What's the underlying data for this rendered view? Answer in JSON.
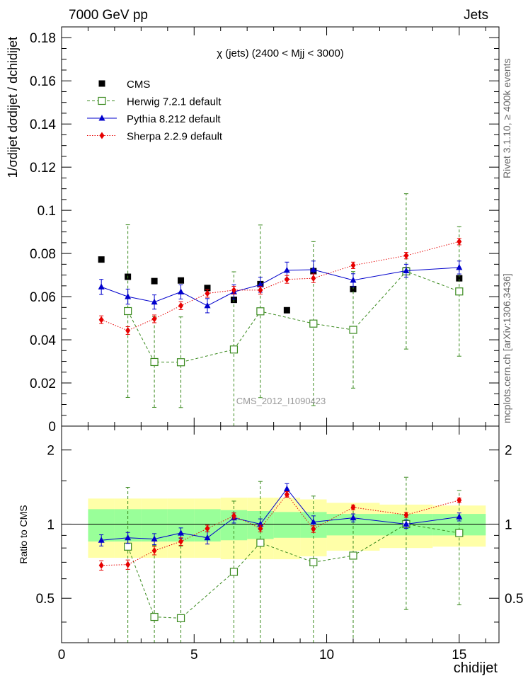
{
  "header": {
    "left": "7000 GeV pp",
    "right": "Jets"
  },
  "side_labels": {
    "rivet": "Rivet 3.1.10, ≥ 400k events",
    "mcplots": "mcplots.cern.ch [arXiv:1306.3436]"
  },
  "chart_data": {
    "type": "line",
    "title": "χ (jets) (2400 < Mjj < 3000)",
    "watermark": "CMS_2012_I1090423",
    "ylabel": "1/σdijet dσdijet / dchidijet",
    "xlabel": "chidijet",
    "ratio_ylabel": "Ratio to CMS",
    "xlim": [
      0,
      16.5
    ],
    "ylim": [
      0,
      0.185
    ],
    "ratio_ylim": [
      0.33,
      2.5
    ],
    "ratio_log": true,
    "x_ticks": [
      0,
      5,
      10,
      15
    ],
    "y_ticks": [
      0,
      0.02,
      0.04,
      0.06,
      0.08,
      0.1,
      0.12,
      0.14,
      0.16,
      0.18
    ],
    "y_tick_labels": [
      "0",
      "0.02",
      "0.04",
      "0.06",
      "0.08",
      "0.1",
      "0.12",
      "0.14",
      "0.16",
      "0.18"
    ],
    "ratio_ticks": [
      0.5,
      1,
      2
    ],
    "ratio_tick_labels": [
      "0.5",
      "1",
      "2"
    ],
    "legend_position": "top-left",
    "bins": [
      [
        1,
        2
      ],
      [
        2,
        3
      ],
      [
        3,
        4
      ],
      [
        4,
        5
      ],
      [
        5,
        6
      ],
      [
        6,
        7
      ],
      [
        7,
        8
      ],
      [
        8,
        9
      ],
      [
        9,
        10
      ],
      [
        10,
        12
      ],
      [
        12,
        14
      ],
      [
        14,
        16
      ]
    ],
    "x": [
      1.5,
      2.5,
      3.5,
      4.5,
      5.5,
      6.5,
      7.5,
      8.5,
      9.5,
      11,
      13,
      15
    ],
    "series": [
      {
        "name": "CMS",
        "color": "#000000",
        "marker": "filled-square",
        "values": [
          0.0772,
          0.0692,
          0.0672,
          0.0675,
          0.064,
          0.0585,
          0.0658,
          0.0537,
          0.0718,
          0.0635,
          0.0722,
          0.0685
        ],
        "band_inner": [
          0.15,
          0.15,
          0.15,
          0.15,
          0.15,
          0.14,
          0.13,
          0.12,
          0.12,
          0.1,
          0.1,
          0.1
        ],
        "band_outer": [
          0.27,
          0.27,
          0.27,
          0.27,
          0.27,
          0.28,
          0.28,
          0.28,
          0.26,
          0.22,
          0.2,
          0.19
        ]
      },
      {
        "name": "Herwig 7.2.1 default",
        "color": "#3a8a1e",
        "marker": "open-square",
        "line": "dashed",
        "values": [
          null,
          0.0533,
          0.0297,
          0.0296,
          null,
          0.0355,
          0.0532,
          null,
          0.0475,
          0.0446,
          0.0717,
          0.0624
        ],
        "errors": [
          null,
          0.04,
          0.021,
          0.021,
          null,
          0.036,
          0.04,
          null,
          0.038,
          0.027,
          0.036,
          0.03
        ],
        "ratio": [
          null,
          0.81,
          0.42,
          0.415,
          null,
          0.64,
          0.84,
          null,
          0.7,
          0.745,
          1.0,
          0.92
        ],
        "ratio_errors": [
          null,
          0.6,
          0.4,
          0.4,
          null,
          0.6,
          0.65,
          null,
          0.6,
          0.45,
          0.55,
          0.45
        ]
      },
      {
        "name": "Pythia 8.212 default",
        "color": "#0000cc",
        "marker": "triangle",
        "line": "solid",
        "values": [
          0.0645,
          0.06,
          0.0575,
          0.0622,
          0.0558,
          0.0622,
          0.0655,
          0.0722,
          0.0725,
          0.0676,
          0.072,
          0.0735
        ],
        "errors": [
          0.0035,
          0.0035,
          0.0033,
          0.0033,
          0.0033,
          0.0033,
          0.0035,
          0.0038,
          0.004,
          0.003,
          0.003,
          0.003
        ],
        "ratio": [
          0.86,
          0.88,
          0.87,
          0.92,
          0.88,
          1.06,
          1.0,
          1.39,
          1.02,
          1.06,
          1.0,
          1.07
        ],
        "ratio_errors": [
          0.045,
          0.045,
          0.045,
          0.045,
          0.05,
          0.05,
          0.05,
          0.07,
          0.06,
          0.04,
          0.04,
          0.04
        ]
      },
      {
        "name": "Sherpa 2.2.9 default",
        "color": "#e60000",
        "marker": "diamond",
        "line": "dotted",
        "values": [
          0.0493,
          0.0443,
          0.0497,
          0.0558,
          0.0615,
          0.063,
          0.063,
          0.068,
          0.0685,
          0.0745,
          0.079,
          0.0855
        ],
        "errors": [
          0.0018,
          0.0018,
          0.0018,
          0.0018,
          0.0018,
          0.0018,
          0.0018,
          0.0018,
          0.002,
          0.0015,
          0.0015,
          0.0015
        ],
        "ratio": [
          0.68,
          0.685,
          0.78,
          0.85,
          0.96,
          1.08,
          0.96,
          1.32,
          0.955,
          1.17,
          1.09,
          1.25
        ],
        "ratio_errors": [
          0.03,
          0.03,
          0.03,
          0.03,
          0.03,
          0.03,
          0.03,
          0.035,
          0.03,
          0.025,
          0.025,
          0.025
        ]
      }
    ]
  }
}
